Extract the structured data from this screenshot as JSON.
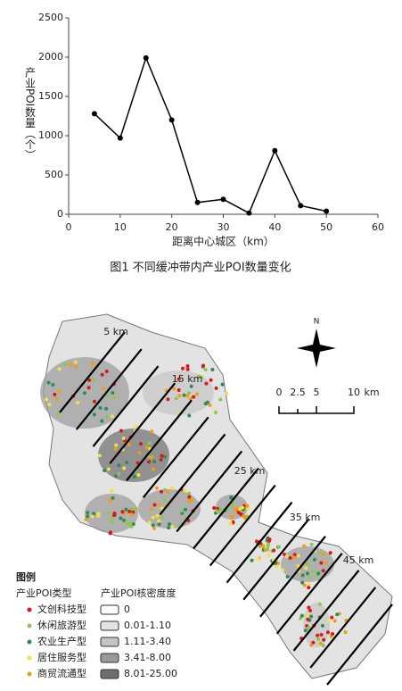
{
  "chart_data": {
    "type": "line",
    "y_label": "产业POI数量（个）",
    "x_label": "距离中心城区（km）",
    "x": [
      5,
      10,
      15,
      20,
      25,
      30,
      35,
      40,
      45,
      50
    ],
    "values": [
      1280,
      970,
      1990,
      1200,
      150,
      190,
      15,
      810,
      110,
      40
    ],
    "color": "#000000",
    "xlim": [
      0,
      60
    ],
    "xticks": [
      0,
      10,
      20,
      30,
      40,
      50,
      60
    ],
    "ylim": [
      0,
      2500
    ],
    "yticks": [
      0,
      500,
      1000,
      1500,
      2000,
      2500
    ]
  },
  "caption": "图1  不同缓冲带内产业POI数量变化",
  "map": {
    "distance_labels": [
      "5 km",
      "15 km",
      "25 km",
      "35 km",
      "45 km"
    ],
    "north": "N",
    "scale_labels": [
      "0",
      "2.5",
      "5",
      "10",
      "km"
    ],
    "legend": {
      "title": "图例",
      "type_title": "产业POI类型",
      "density_title": "产业POI核密度度",
      "types": [
        {
          "label": "文创科技型",
          "color": "#d7191c"
        },
        {
          "label": "休闲旅游型",
          "color": "#8cc84b"
        },
        {
          "label": "农业生产型",
          "color": "#2e8b57"
        },
        {
          "label": "居住服务型",
          "color": "#f2e24a"
        },
        {
          "label": "商贸流通型",
          "color": "#f39c12"
        }
      ],
      "density_classes": [
        {
          "label": "0",
          "color": "#ffffff"
        },
        {
          "label": "0.01-1.10",
          "color": "#e3e3e3"
        },
        {
          "label": "1.11-3.40",
          "color": "#c4c4c4"
        },
        {
          "label": "3.41-8.00",
          "color": "#9a9a9a"
        },
        {
          "label": "8.01-25.00",
          "color": "#6e6e6e"
        }
      ]
    }
  }
}
